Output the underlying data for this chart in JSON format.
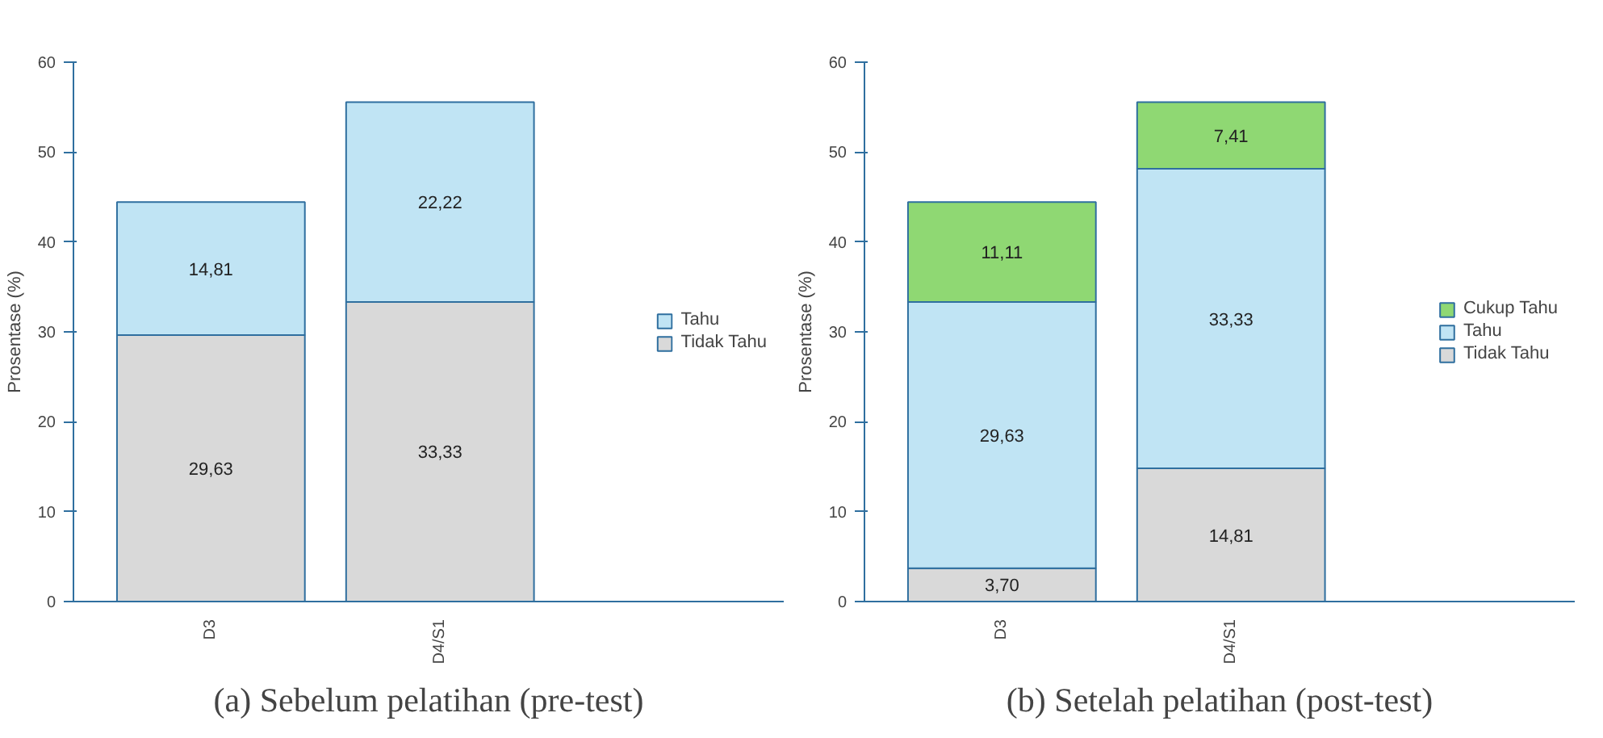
{
  "chart_data": [
    {
      "type": "bar",
      "title": "(a) Sebelum pelatihan (pre-test)",
      "ylabel": "Prosentase (%)",
      "categories": [
        "D3",
        "D4/S1"
      ],
      "stacked": true,
      "ylim": [
        0,
        60
      ],
      "yticks": [
        0,
        10,
        20,
        30,
        40,
        50,
        60
      ],
      "legend": "right",
      "grid": false,
      "series": [
        {
          "name": "Tidak Tahu",
          "color": "#d9d9d9",
          "values": [
            29.63,
            33.33
          ],
          "value_labels": [
            "29,63",
            "33,33"
          ]
        },
        {
          "name": "Tahu",
          "color": "#c0e4f4",
          "values": [
            14.81,
            22.22
          ],
          "value_labels": [
            "14,81",
            "22,22"
          ]
        }
      ]
    },
    {
      "type": "bar",
      "title": "(b) Setelah pelatihan (post-test)",
      "ylabel": "Prosentase (%)",
      "categories": [
        "D3",
        "D4/S1"
      ],
      "stacked": true,
      "ylim": [
        0,
        60
      ],
      "yticks": [
        0,
        10,
        20,
        30,
        40,
        50,
        60
      ],
      "legend": "right",
      "grid": false,
      "series": [
        {
          "name": "Tidak Tahu",
          "color": "#d9d9d9",
          "values": [
            3.7,
            14.81
          ],
          "value_labels": [
            "3,70",
            "14,81"
          ]
        },
        {
          "name": "Tahu",
          "color": "#c0e4f4",
          "values": [
            29.63,
            33.33
          ],
          "value_labels": [
            "29,63",
            "33,33"
          ]
        },
        {
          "name": "Cukup Tahu",
          "color": "#8fd873",
          "values": [
            11.11,
            7.41
          ],
          "value_labels": [
            "11,11",
            "7,41"
          ]
        }
      ]
    }
  ]
}
